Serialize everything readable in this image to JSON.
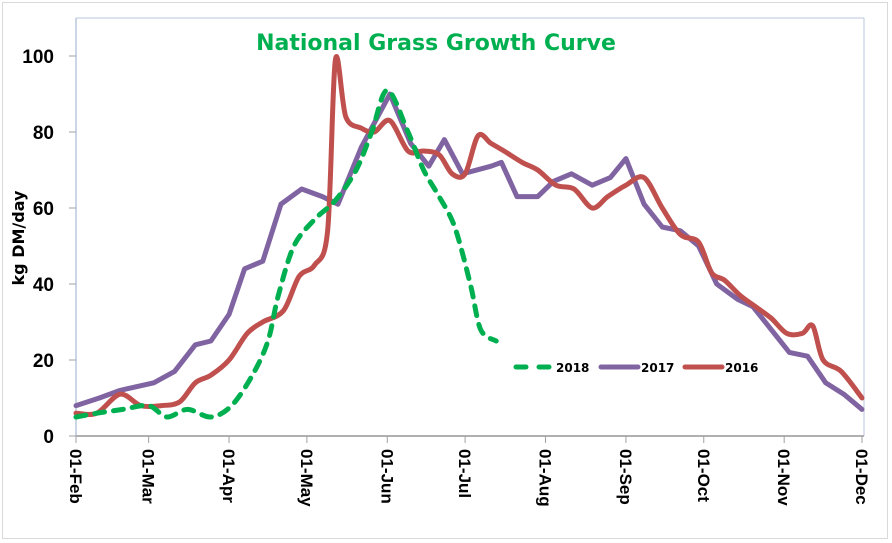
{
  "chart_data": {
    "type": "line",
    "title": "National Grass Growth Curve",
    "title_color": "#00b050",
    "xlabel": "",
    "ylabel": "kg DM/day",
    "ylim": [
      0,
      100
    ],
    "yticks": [
      0,
      20,
      40,
      60,
      80,
      100
    ],
    "x_unit": "days since 01-Feb",
    "xlim": [
      0,
      303
    ],
    "xticks": [
      {
        "day": 0,
        "label": "01-Feb"
      },
      {
        "day": 28,
        "label": "01-Mar"
      },
      {
        "day": 59,
        "label": "01-Apr"
      },
      {
        "day": 89,
        "label": "01-May"
      },
      {
        "day": 120,
        "label": "01-Jun"
      },
      {
        "day": 150,
        "label": "01-Jul"
      },
      {
        "day": 181,
        "label": "01-Aug"
      },
      {
        "day": 212,
        "label": "01-Sep"
      },
      {
        "day": 242,
        "label": "01-Oct"
      },
      {
        "day": 273,
        "label": "01-Nov"
      },
      {
        "day": 303,
        "label": "01-Dec"
      }
    ],
    "grid": false,
    "legend": "bottom-right-inside",
    "series": [
      {
        "name": "2018",
        "color": "#00b050",
        "style": "dashed",
        "smooth": true,
        "x": [
          0,
          8,
          18,
          28,
          35,
          43,
          52,
          60,
          68,
          74,
          78,
          84,
          92,
          100,
          108,
          114,
          120,
          128,
          134,
          140,
          146,
          152,
          156,
          162
        ],
        "y": [
          5,
          6,
          7,
          8,
          5,
          7,
          5,
          8,
          16,
          25,
          37,
          50,
          57,
          62,
          70,
          80,
          91,
          80,
          70,
          63,
          55,
          40,
          28,
          25
        ]
      },
      {
        "name": "2017",
        "color": "#8064a2",
        "style": "solid",
        "smooth": false,
        "x": [
          0,
          9,
          17,
          30,
          38,
          46,
          52,
          59,
          65,
          72,
          79,
          87,
          95,
          101,
          110,
          121,
          129,
          136,
          142,
          149,
          160,
          164,
          170,
          178,
          184,
          191,
          199,
          206,
          212,
          219,
          226,
          233,
          240,
          247,
          255,
          261,
          268,
          275,
          282,
          289,
          296,
          303
        ],
        "y": [
          8,
          10,
          12,
          14,
          17,
          24,
          25,
          32,
          44,
          46,
          61,
          65,
          63,
          61,
          76,
          90,
          77,
          71,
          78,
          69,
          71,
          72,
          63,
          63,
          67,
          69,
          66,
          68,
          73,
          61,
          55,
          54,
          50,
          40,
          36,
          34,
          28,
          22,
          21,
          14,
          11,
          7
        ]
      },
      {
        "name": "2016",
        "color": "#c0504d",
        "style": "solid",
        "smooth": true,
        "x": [
          0,
          8,
          17,
          25,
          33,
          40,
          46,
          52,
          59,
          66,
          72,
          80,
          86,
          92,
          97,
          100,
          104,
          110,
          115,
          121,
          128,
          134,
          140,
          145,
          150,
          155,
          160,
          165,
          172,
          178,
          185,
          192,
          199,
          205,
          212,
          219,
          226,
          233,
          240,
          245,
          250,
          256,
          262,
          268,
          274,
          280,
          284,
          288,
          295,
          303
        ],
        "y": [
          6,
          6,
          11,
          8,
          8,
          9,
          14,
          16,
          20,
          27,
          30,
          33,
          42,
          45,
          54,
          99,
          84,
          81,
          80,
          83,
          75,
          75,
          74,
          69,
          69,
          79,
          77,
          75,
          72,
          70,
          66,
          65,
          60,
          63,
          66,
          68,
          60,
          53,
          51,
          43,
          41,
          37,
          34,
          31,
          27,
          27,
          29,
          20,
          17,
          10
        ]
      }
    ]
  }
}
